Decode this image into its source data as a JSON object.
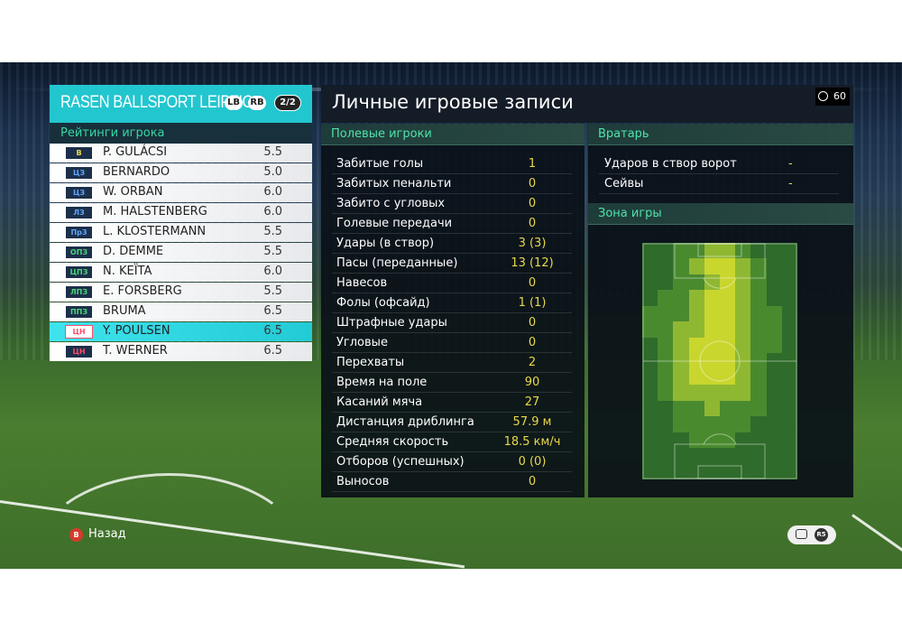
{
  "team": {
    "name": "RASEN BALLSPORT LEIPZIG",
    "lb": "LB",
    "rb": "RB",
    "page": "2/2"
  },
  "ratings_title": "Рейтинги игрока",
  "players": [
    {
      "pos": "В",
      "pos_color": "#e8d84a",
      "name": "P. GULÁCSI",
      "rating": "5.5"
    },
    {
      "pos": "ЦЗ",
      "pos_color": "#5ea6ff",
      "name": "BERNARDO",
      "rating": "5.0"
    },
    {
      "pos": "ЦЗ",
      "pos_color": "#5ea6ff",
      "name": "W. ORBAN",
      "rating": "6.0"
    },
    {
      "pos": "ЛЗ",
      "pos_color": "#5ea6ff",
      "name": "M. HALSTENBERG",
      "rating": "6.0"
    },
    {
      "pos": "ПрЗ",
      "pos_color": "#5ea6ff",
      "name": "L. KLOSTERMANN",
      "rating": "5.5"
    },
    {
      "pos": "ОПЗ",
      "pos_color": "#49d77a",
      "name": "D. DEMME",
      "rating": "5.5"
    },
    {
      "pos": "ЦПЗ",
      "pos_color": "#49d77a",
      "name": "N. KEÏTA",
      "rating": "6.0"
    },
    {
      "pos": "ЛПЗ",
      "pos_color": "#49d77a",
      "name": "E. FORSBERG",
      "rating": "5.5"
    },
    {
      "pos": "ППЗ",
      "pos_color": "#49d77a",
      "name": "BRUMA",
      "rating": "6.5"
    },
    {
      "pos": "ЦН",
      "pos_color": "#ff4d6d",
      "name": "Y. POULSEN",
      "rating": "6.5",
      "selected": true
    },
    {
      "pos": "ЦН",
      "pos_color": "#ff4d6d",
      "name": "T. WERNER",
      "rating": "6.5"
    }
  ],
  "records_title": "Личные игровые записи",
  "timer": "60",
  "field_players_title": "Полевые игроки",
  "stats": [
    {
      "label": "Забитые голы",
      "value": "1"
    },
    {
      "label": "Забитых пенальти",
      "value": "0"
    },
    {
      "label": "Забито с угловых",
      "value": "0"
    },
    {
      "label": "Голевые передачи",
      "value": "0"
    },
    {
      "label": "Удары (в створ)",
      "value": "3 (3)"
    },
    {
      "label": "Пасы (переданные)",
      "value": "13 (12)"
    },
    {
      "label": "Навесов",
      "value": "0"
    },
    {
      "label": "Фолы (офсайд)",
      "value": "1 (1)"
    },
    {
      "label": "Штрафные удары",
      "value": "0"
    },
    {
      "label": "Угловые",
      "value": "0"
    },
    {
      "label": "Перехваты",
      "value": "2"
    },
    {
      "label": "Время на поле",
      "value": "90"
    },
    {
      "label": "Касаний мяча",
      "value": "27"
    },
    {
      "label": "Дистанция дриблинга",
      "value": "57.9 м"
    },
    {
      "label": "Средняя скорость",
      "value": "18.5 км/ч"
    },
    {
      "label": "Отборов (успешных)",
      "value": "0 (0)"
    },
    {
      "label": "Выносов",
      "value": "0"
    }
  ],
  "goalkeeper_title": "Вратарь",
  "goalkeeper_stats": [
    {
      "label": "Ударов в створ ворот",
      "value": "-"
    },
    {
      "label": "Сейвы",
      "value": "-"
    }
  ],
  "zone_title": "Зона игры",
  "heatmap": {
    "cols": 10,
    "rows": 15,
    "colors": {
      "0": "#2f6b2a",
      "1": "#4a8a2f",
      "2": "#8fb832",
      "3": "#c9d62e"
    },
    "levels": [
      [
        0,
        0,
        1,
        1,
        2,
        2,
        1,
        0,
        0,
        0
      ],
      [
        0,
        0,
        1,
        2,
        3,
        3,
        2,
        1,
        0,
        0
      ],
      [
        0,
        0,
        1,
        1,
        2,
        3,
        2,
        1,
        0,
        0
      ],
      [
        0,
        1,
        1,
        2,
        3,
        3,
        2,
        1,
        0,
        0
      ],
      [
        1,
        1,
        1,
        2,
        3,
        3,
        2,
        1,
        1,
        0
      ],
      [
        1,
        1,
        2,
        2,
        3,
        3,
        2,
        1,
        1,
        0
      ],
      [
        0,
        1,
        2,
        3,
        3,
        3,
        2,
        1,
        1,
        0
      ],
      [
        0,
        1,
        2,
        3,
        3,
        3,
        2,
        1,
        0,
        0
      ],
      [
        0,
        1,
        2,
        3,
        3,
        3,
        2,
        1,
        0,
        0
      ],
      [
        0,
        1,
        2,
        2,
        2,
        2,
        2,
        1,
        0,
        0
      ],
      [
        0,
        0,
        1,
        1,
        2,
        1,
        1,
        1,
        0,
        0
      ],
      [
        0,
        0,
        1,
        1,
        1,
        1,
        1,
        0,
        0,
        0
      ],
      [
        0,
        0,
        0,
        1,
        1,
        1,
        0,
        0,
        0,
        0
      ],
      [
        0,
        0,
        0,
        0,
        0,
        0,
        0,
        0,
        0,
        0
      ],
      [
        0,
        0,
        0,
        0,
        0,
        0,
        0,
        0,
        0,
        0
      ]
    ]
  },
  "footer": {
    "back_key": "B",
    "back_label": "Назад",
    "r_key": "R5"
  }
}
